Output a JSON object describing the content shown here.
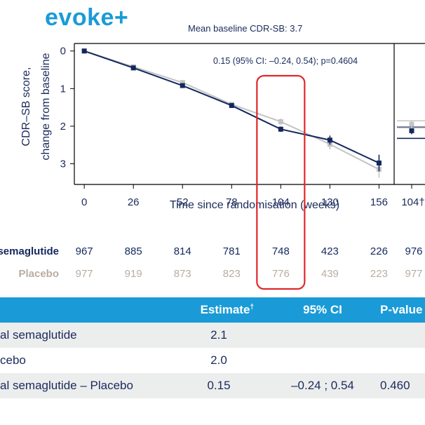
{
  "header": {
    "title": "evoke+",
    "subtitle": "Mean baseline CDR-SB: 3.7"
  },
  "chart_data": {
    "type": "line",
    "ylabel_line1": "CDR–SB score,",
    "ylabel_line2": "change from baseline",
    "xlabel": "Time since randomisation (weeks)",
    "x": [
      0,
      26,
      52,
      78,
      104,
      130,
      156
    ],
    "x_tick_labels": [
      "0",
      "26",
      "52",
      "78",
      "104",
      "130",
      "156",
      "104†"
    ],
    "y_tick_labels": [
      "0",
      "1",
      "2",
      "3"
    ],
    "ylim": [
      0,
      3.55
    ],
    "y_inverted": true,
    "annotation": "0.15 (95% CI: –0.24, 0.54); p=0.4604",
    "series": [
      {
        "name": "semaglutide",
        "color": "#14285e",
        "values": [
          0,
          0.45,
          0.92,
          1.45,
          2.08,
          2.37,
          2.98
        ],
        "err": [
          0,
          0.04,
          0.05,
          0.06,
          0.07,
          0.12,
          0.22
        ],
        "side_value": 2.12
      },
      {
        "name": "Placebo",
        "color": "#c4c4c4",
        "values": [
          0,
          0.42,
          0.84,
          1.42,
          1.88,
          2.48,
          3.15
        ],
        "err": [
          0,
          0.04,
          0.05,
          0.06,
          0.08,
          0.14,
          0.22
        ],
        "side_value": 1.95
      }
    ],
    "highlight_x": 104,
    "numbers_at_risk": {
      "rows": [
        {
          "label": "semaglutide",
          "color": "#14285e",
          "values": [
            "967",
            "885",
            "814",
            "781",
            "748",
            "423",
            "226",
            "976"
          ]
        },
        {
          "label": "Placebo",
          "color": "#b9ada0",
          "values": [
            "977",
            "919",
            "873",
            "823",
            "776",
            "439",
            "223",
            "977"
          ]
        }
      ]
    }
  },
  "table": {
    "headers": [
      "",
      "Estimate†",
      "95% CI",
      "P-value"
    ],
    "rows": [
      [
        "al semaglutide",
        "2.1",
        "",
        ""
      ],
      [
        "cebo",
        "2.0",
        "",
        ""
      ],
      [
        "al semaglutide – Placebo",
        "0.15",
        "–0.24 ; 0.54",
        "0.460"
      ]
    ]
  }
}
